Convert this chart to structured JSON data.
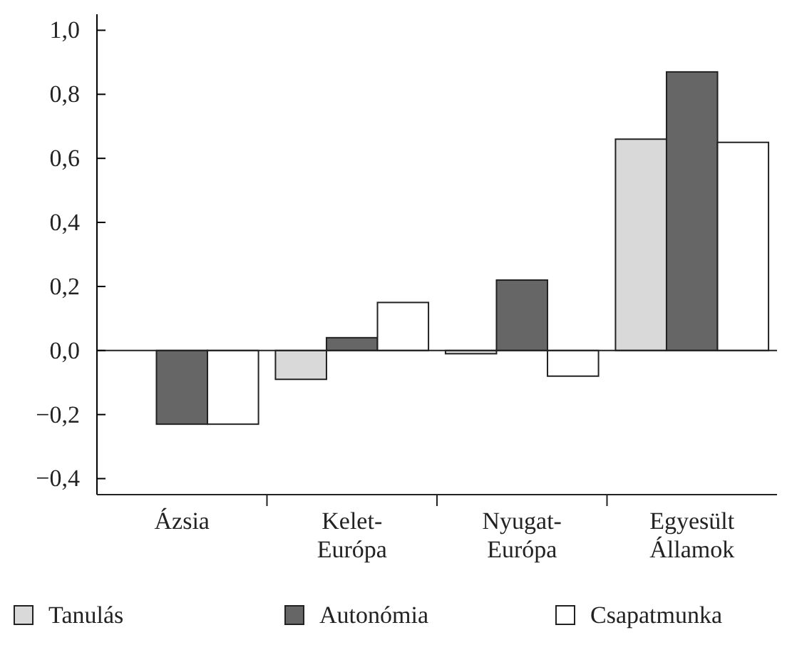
{
  "chart_data": {
    "type": "bar",
    "categories": [
      "Ázsia",
      "Kelet-Európa",
      "Nyugat-Európa",
      "Egyesült Államok"
    ],
    "series": [
      {
        "name": "Tanulás",
        "color": "#d9d9d9",
        "values": [
          0,
          -0.09,
          -0.01,
          0.66
        ]
      },
      {
        "name": "Autonómia",
        "color": "#666666",
        "values": [
          -0.23,
          0.04,
          0.22,
          0.87
        ]
      },
      {
        "name": "Csapatmunka",
        "color": "#ffffff",
        "values": [
          -0.23,
          0.15,
          -0.08,
          0.65
        ]
      }
    ],
    "ylim": [
      -0.45,
      1.05
    ],
    "yticks": [
      {
        "value": -0.4,
        "label": "−0,4"
      },
      {
        "value": -0.2,
        "label": "−0,2"
      },
      {
        "value": 0,
        "label": "0,0"
      },
      {
        "value": 0.2,
        "label": "0,2"
      },
      {
        "value": 0.4,
        "label": "0,4"
      },
      {
        "value": 0.6,
        "label": "0,6"
      },
      {
        "value": 0.8,
        "label": "0,8"
      },
      {
        "value": 1,
        "label": "1,0"
      }
    ],
    "ref_lines": [
      {
        "axis": "y",
        "value": 0,
        "color": "#222222"
      }
    ],
    "legend": "bottom"
  }
}
